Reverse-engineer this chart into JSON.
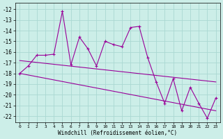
{
  "xlabel": "Windchill (Refroidissement éolien,°C)",
  "background_color": "#cceee8",
  "grid_color": "#aad8d2",
  "line_color": "#990099",
  "xlim": [
    -0.5,
    23.5
  ],
  "ylim": [
    -22.6,
    -11.4
  ],
  "xticks": [
    0,
    1,
    2,
    3,
    4,
    5,
    6,
    7,
    8,
    9,
    10,
    11,
    12,
    13,
    14,
    15,
    16,
    17,
    18,
    19,
    20,
    21,
    22,
    23
  ],
  "yticks": [
    -12,
    -13,
    -14,
    -15,
    -16,
    -17,
    -18,
    -19,
    -20,
    -21,
    -22
  ],
  "x": [
    0,
    1,
    2,
    3,
    4,
    5,
    6,
    7,
    8,
    9,
    10,
    11,
    12,
    13,
    14,
    15,
    16,
    17,
    18,
    19,
    20,
    21,
    22,
    23
  ],
  "y": [
    -18.0,
    -17.3,
    -16.3,
    -16.3,
    -16.2,
    -12.2,
    -17.2,
    -14.6,
    -15.7,
    -17.3,
    -15.0,
    -15.3,
    -15.5,
    -13.7,
    -13.6,
    -16.5,
    -18.8,
    -20.8,
    -18.5,
    -21.5,
    -19.3,
    -20.8,
    -22.2,
    -20.3
  ],
  "trend1_x": [
    0,
    23
  ],
  "trend1_y": [
    -16.8,
    -18.8
  ],
  "trend2_x": [
    0,
    23
  ],
  "trend2_y": [
    -18.0,
    -21.5
  ]
}
